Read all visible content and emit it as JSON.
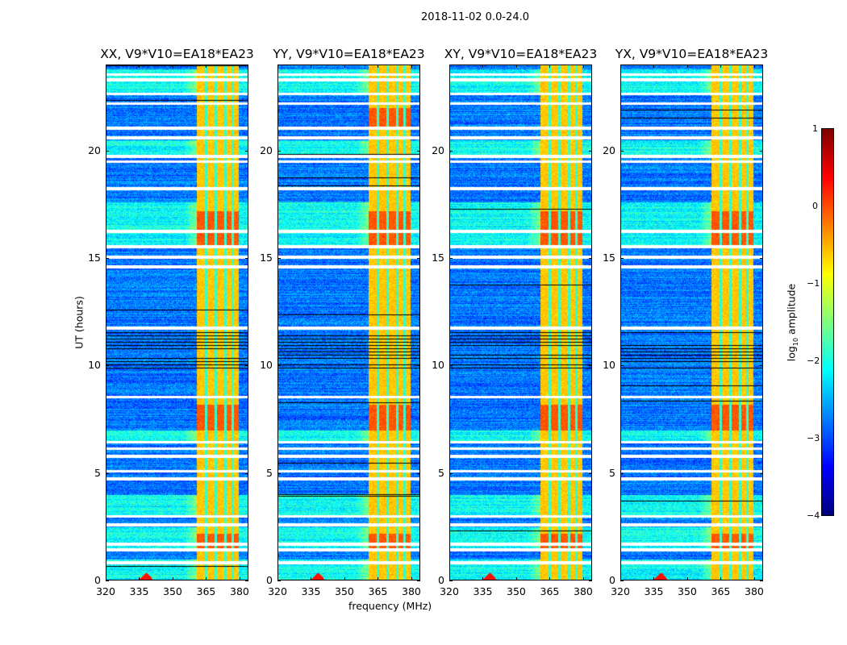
{
  "chart_data": {
    "type": "heatmap",
    "title": "2018-11-02 0.0-24.0",
    "xlabel": "frequency (MHz)",
    "ylabel": "UT (hours)",
    "xlim": [
      320,
      384
    ],
    "ylim": [
      0,
      24
    ],
    "xticks": [
      "320",
      "335",
      "350",
      "365",
      "380"
    ],
    "xtick_values": [
      320,
      335,
      350,
      365,
      380
    ],
    "yticks": [
      "0",
      "5",
      "10",
      "15",
      "20"
    ],
    "ytick_values": [
      0,
      5,
      10,
      15,
      20
    ],
    "colorbar": {
      "label_main": "log",
      "label_sub": "10",
      "label_rest": " amplitude",
      "colormap": "jet",
      "range": [
        -4,
        1
      ],
      "ticks": [
        "1",
        "0",
        "−1",
        "−2",
        "−3",
        "−4"
      ],
      "tick_values": [
        1,
        0,
        -1,
        -2,
        -3,
        -4
      ]
    },
    "panels": [
      {
        "title": "XX, V9*V10=EA18*EA23",
        "pol": "XX"
      },
      {
        "title": "YY, V9*V10=EA18*EA23",
        "pol": "YY"
      },
      {
        "title": "XY, V9*V10=EA18*EA23",
        "pol": "XY"
      },
      {
        "title": "YX, V9*V10=EA18*EA23",
        "pol": "YX"
      }
    ],
    "background_level": -2.8,
    "band_mhz": [
      360.5,
      379.5
    ],
    "band_level": -0.6,
    "band_gaps_mhz": [
      364.7,
      369.3,
      373.6,
      376.9
    ],
    "rfi_spike_mhz": 338,
    "flagged_hours": [
      0.85,
      1.45,
      1.7,
      2.6,
      3.0,
      4.75,
      5.1,
      5.8,
      6.15,
      6.45,
      8.55,
      11.75,
      14.6,
      15.05,
      15.55,
      16.25,
      18.25,
      19.5,
      19.75,
      20.6,
      21.05,
      22.2,
      22.65,
      23.3,
      23.55
    ],
    "bright_periods_hours": [
      [
        0.0,
        1.0
      ],
      [
        1.5,
        2.5
      ],
      [
        3.0,
        4.0
      ],
      [
        6.4,
        7.0
      ],
      [
        15.5,
        17.6
      ],
      [
        19.7,
        20.5
      ],
      [
        22.6,
        23.8
      ]
    ],
    "noisy_period_hours": [
      9.8,
      11.8
    ]
  }
}
